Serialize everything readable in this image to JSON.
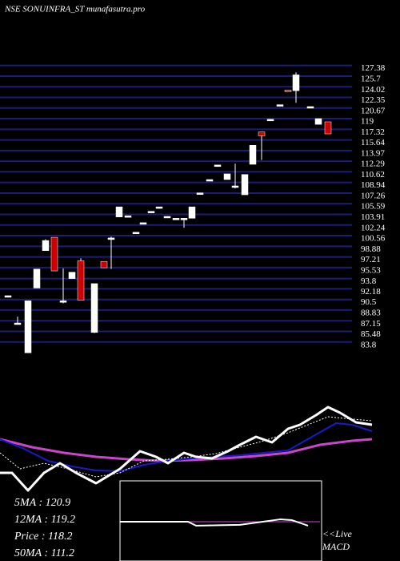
{
  "chart_data": {
    "type": "candlestick",
    "title": "NSE SONUINFRA_ST munafasutra.pro",
    "ylim": [
      82,
      128.5
    ],
    "yticks": [
      127.38,
      125.7,
      124.02,
      122.35,
      120.67,
      119,
      117.32,
      115.64,
      113.97,
      112.29,
      110.62,
      108.94,
      107.26,
      105.59,
      103.91,
      102.24,
      100.56,
      98.88,
      97.21,
      95.53,
      93.8,
      92.18,
      90.5,
      88.83,
      87.15,
      85.48,
      83.8
    ],
    "grid": true,
    "grid_color": "#1c1c7a",
    "up_color": "#ffffff",
    "down_color": "#cc0000",
    "x": [
      10,
      22,
      35,
      46,
      57,
      68,
      79,
      90,
      101,
      118,
      130,
      139,
      149,
      160,
      170,
      179,
      189,
      199,
      209,
      220,
      230,
      240,
      250,
      262,
      272,
      284,
      294,
      306,
      316,
      327,
      338,
      350,
      360,
      370,
      388,
      398,
      410
    ],
    "xlim": [
      0,
      440
    ],
    "open": [
      91.1,
      86.8,
      82.1,
      92.3,
      98.2,
      100.3,
      90.3,
      93.8,
      96.6,
      85.3,
      96.5,
      100.2,
      103.5,
      103.7,
      101.1,
      102.6,
      104.4,
      105.1,
      103.6,
      103.3,
      103.3,
      103.3,
      107.3,
      109.4,
      111.7,
      109.4,
      108.4,
      107.0,
      111.8,
      116.9,
      118.9,
      121.2,
      123.5,
      123.4,
      120.9,
      118.1,
      118.5
    ],
    "high": [
      91.1,
      87.8,
      90.3,
      95.3,
      100.0,
      100.3,
      95.4,
      94.8,
      97.0,
      93.0,
      96.5,
      100.4,
      105.1,
      103.7,
      101.1,
      102.6,
      104.4,
      105.1,
      103.6,
      103.3,
      103.3,
      105.1,
      107.3,
      109.4,
      111.7,
      110.3,
      111.9,
      110.2,
      114.8,
      116.9,
      118.9,
      121.2,
      123.5,
      126.3,
      120.9,
      119.0,
      118.5
    ],
    "low": [
      91.1,
      86.8,
      82.1,
      92.3,
      98.2,
      95.0,
      89.9,
      93.8,
      90.4,
      85.2,
      95.5,
      95.3,
      103.5,
      103.7,
      101.1,
      102.6,
      104.4,
      105.1,
      103.6,
      103.3,
      101.8,
      103.3,
      107.3,
      109.4,
      111.7,
      109.4,
      108.0,
      107.0,
      111.8,
      112.5,
      118.9,
      121.2,
      123.3,
      121.5,
      120.9,
      118.1,
      116.6
    ],
    "close": [
      91.1,
      86.8,
      90.3,
      95.3,
      99.8,
      95.0,
      90.3,
      94.8,
      90.4,
      93.0,
      95.5,
      100.2,
      105.1,
      103.7,
      101.1,
      102.6,
      104.4,
      105.1,
      103.6,
      103.3,
      103.3,
      105.1,
      107.3,
      109.4,
      111.7,
      110.3,
      108.4,
      110.2,
      114.8,
      116.3,
      118.9,
      121.2,
      123.3,
      125.9,
      120.9,
      119.0,
      116.6
    ],
    "lower_panel": {
      "xlim": [
        0,
        465
      ],
      "ylim": [
        0,
        130
      ],
      "series": [
        {
          "color": "#cc44cc",
          "width": 3,
          "x": [
            0,
            40,
            80,
            120,
            160,
            200,
            240,
            280,
            320,
            360,
            400,
            440,
            465
          ],
          "values": [
            72,
            62,
            55,
            50,
            47,
            45,
            46,
            48,
            51,
            55,
            65,
            70,
            72
          ]
        },
        {
          "color": "#1a1acc",
          "width": 2,
          "x": [
            0,
            30,
            60,
            90,
            120,
            150,
            180,
            210,
            240,
            270,
            300,
            330,
            360,
            390,
            420,
            440,
            465
          ],
          "values": [
            72,
            60,
            45,
            38,
            33,
            32,
            40,
            45,
            48,
            50,
            52,
            55,
            58,
            75,
            92,
            90,
            82
          ]
        },
        {
          "color": "#ffffff",
          "width": 1,
          "dash": "2,2",
          "x": [
            0,
            25,
            55,
            85,
            120,
            150,
            180,
            210,
            240,
            270,
            300,
            330,
            360,
            390,
            410,
            430,
            465
          ],
          "values": [
            55,
            35,
            42,
            35,
            25,
            30,
            45,
            47,
            50,
            54,
            62,
            70,
            80,
            92,
            100,
            98,
            95
          ]
        },
        {
          "color": "#ffffff",
          "width": 3,
          "x": [
            0,
            15,
            35,
            55,
            75,
            95,
            120,
            150,
            175,
            195,
            210,
            230,
            245,
            265,
            285,
            300,
            320,
            340,
            360,
            375,
            395,
            410,
            425,
            445,
            465
          ],
          "values": [
            30,
            30,
            8,
            30,
            42,
            30,
            17,
            35,
            57,
            50,
            42,
            55,
            50,
            48,
            57,
            65,
            75,
            68,
            85,
            90,
            102,
            112,
            105,
            93,
            90
          ]
        }
      ]
    },
    "macd": {
      "xlim": [
        0,
        250
      ],
      "ylim": [
        0,
        100
      ],
      "series": [
        {
          "color": "#cc44cc",
          "width": 1,
          "x": [
            0,
            250
          ],
          "values": [
            50,
            50
          ]
        },
        {
          "color": "#ffffff",
          "width": 2,
          "x": [
            0,
            85,
            95,
            150,
            200,
            215,
            235
          ],
          "values": [
            50,
            50,
            45,
            46,
            53,
            52,
            45
          ]
        }
      ]
    },
    "stats": [
      "5MA : 120.9",
      "12MA : 119.2",
      "Price   : 118.2",
      "50MA : 111.2"
    ],
    "live": "<<Live",
    "macd_label": "MACD"
  }
}
